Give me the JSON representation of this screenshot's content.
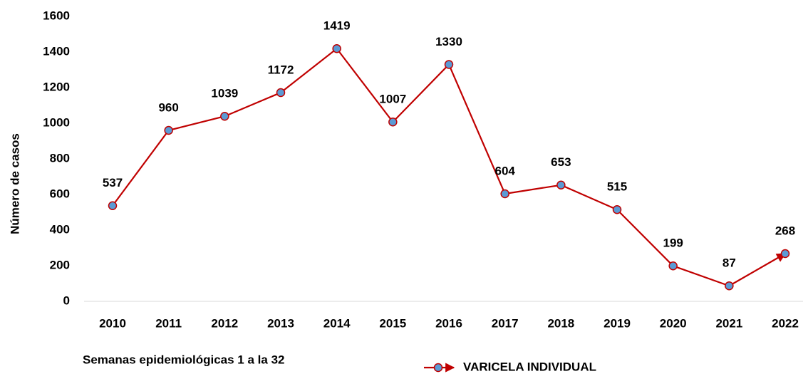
{
  "chart_data": {
    "type": "line",
    "categories": [
      "2010",
      "2011",
      "2012",
      "2013",
      "2014",
      "2015",
      "2016",
      "2017",
      "2018",
      "2019",
      "2020",
      "2021",
      "2022"
    ],
    "series": [
      {
        "name": "VARICELA INDIVIDUAL",
        "color": "#c00000",
        "marker_color": "#5b9bd5",
        "values": [
          537,
          960,
          1039,
          1172,
          1419,
          1007,
          1330,
          604,
          653,
          515,
          199,
          87,
          268
        ]
      }
    ],
    "ylim": [
      0,
      1600
    ],
    "yticks": [
      0,
      200,
      400,
      600,
      800,
      1000,
      1200,
      1400,
      1600
    ],
    "ylabel": "Número de casos",
    "xlabel": "Semanas epidemiológicas 1 a la 32",
    "grid": false,
    "legend": "bottom"
  }
}
